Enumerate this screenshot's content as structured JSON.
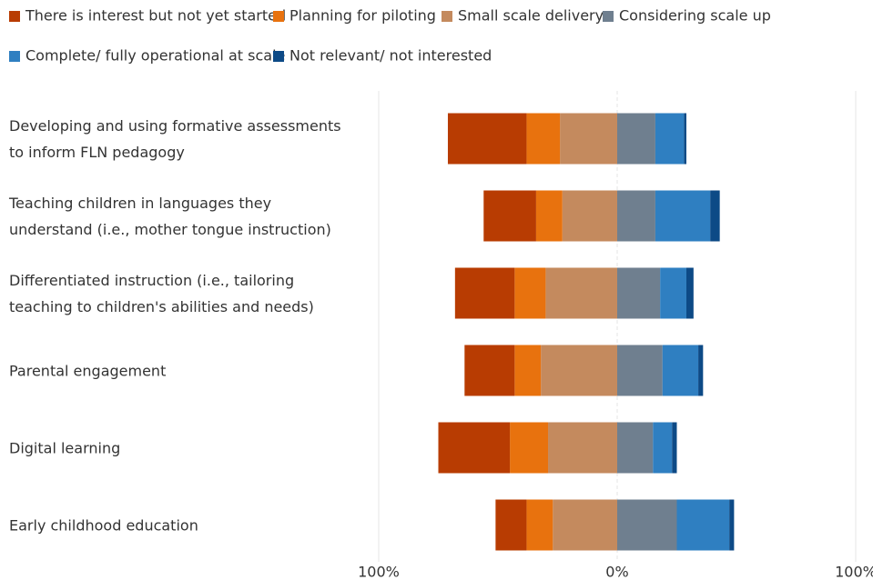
{
  "chart_data": {
    "type": "diverging_bar",
    "categories": [
      "Developing and using formative assessments to inform FLN pedagogy",
      "Teaching children in languages they understand (i.e., mother tongue instruction)",
      "Differentiated instruction (i.e., tailoring teaching to children's abilities and needs)",
      "Parental engagement",
      "Digital learning",
      "Early childhood education"
    ],
    "series": [
      {
        "name": "There is interest but not yet started",
        "color": "#b83c02",
        "values": [
          -33,
          -22,
          -25,
          -21,
          -30,
          -13
        ]
      },
      {
        "name": "Planning for piloting",
        "color": "#e8720e",
        "values": [
          -14,
          -11,
          -13,
          -11,
          -16,
          -11
        ]
      },
      {
        "name": "Small scale delivery",
        "color": "#c48a5e",
        "values": [
          -24,
          -23,
          -30,
          -32,
          -29,
          -27
        ]
      },
      {
        "name": "Considering scale up",
        "color": "#6f7f8f",
        "values": [
          16,
          16,
          18,
          19,
          15,
          25
        ]
      },
      {
        "name": "Complete/ fully operational at scale",
        "color": "#2f7fc1",
        "values": [
          12,
          23,
          11,
          15,
          8,
          22
        ]
      },
      {
        "name": "Not relevant/ not interested",
        "color": "#0d4a86",
        "values": [
          1,
          4,
          3,
          2,
          2,
          2
        ]
      }
    ],
    "xlim": [
      -100,
      100
    ],
    "xticks": [
      {
        "value": -100,
        "label": "100%"
      },
      {
        "value": 0,
        "label": "0%"
      },
      {
        "value": 100,
        "label": "100%"
      }
    ],
    "legend": "top"
  }
}
